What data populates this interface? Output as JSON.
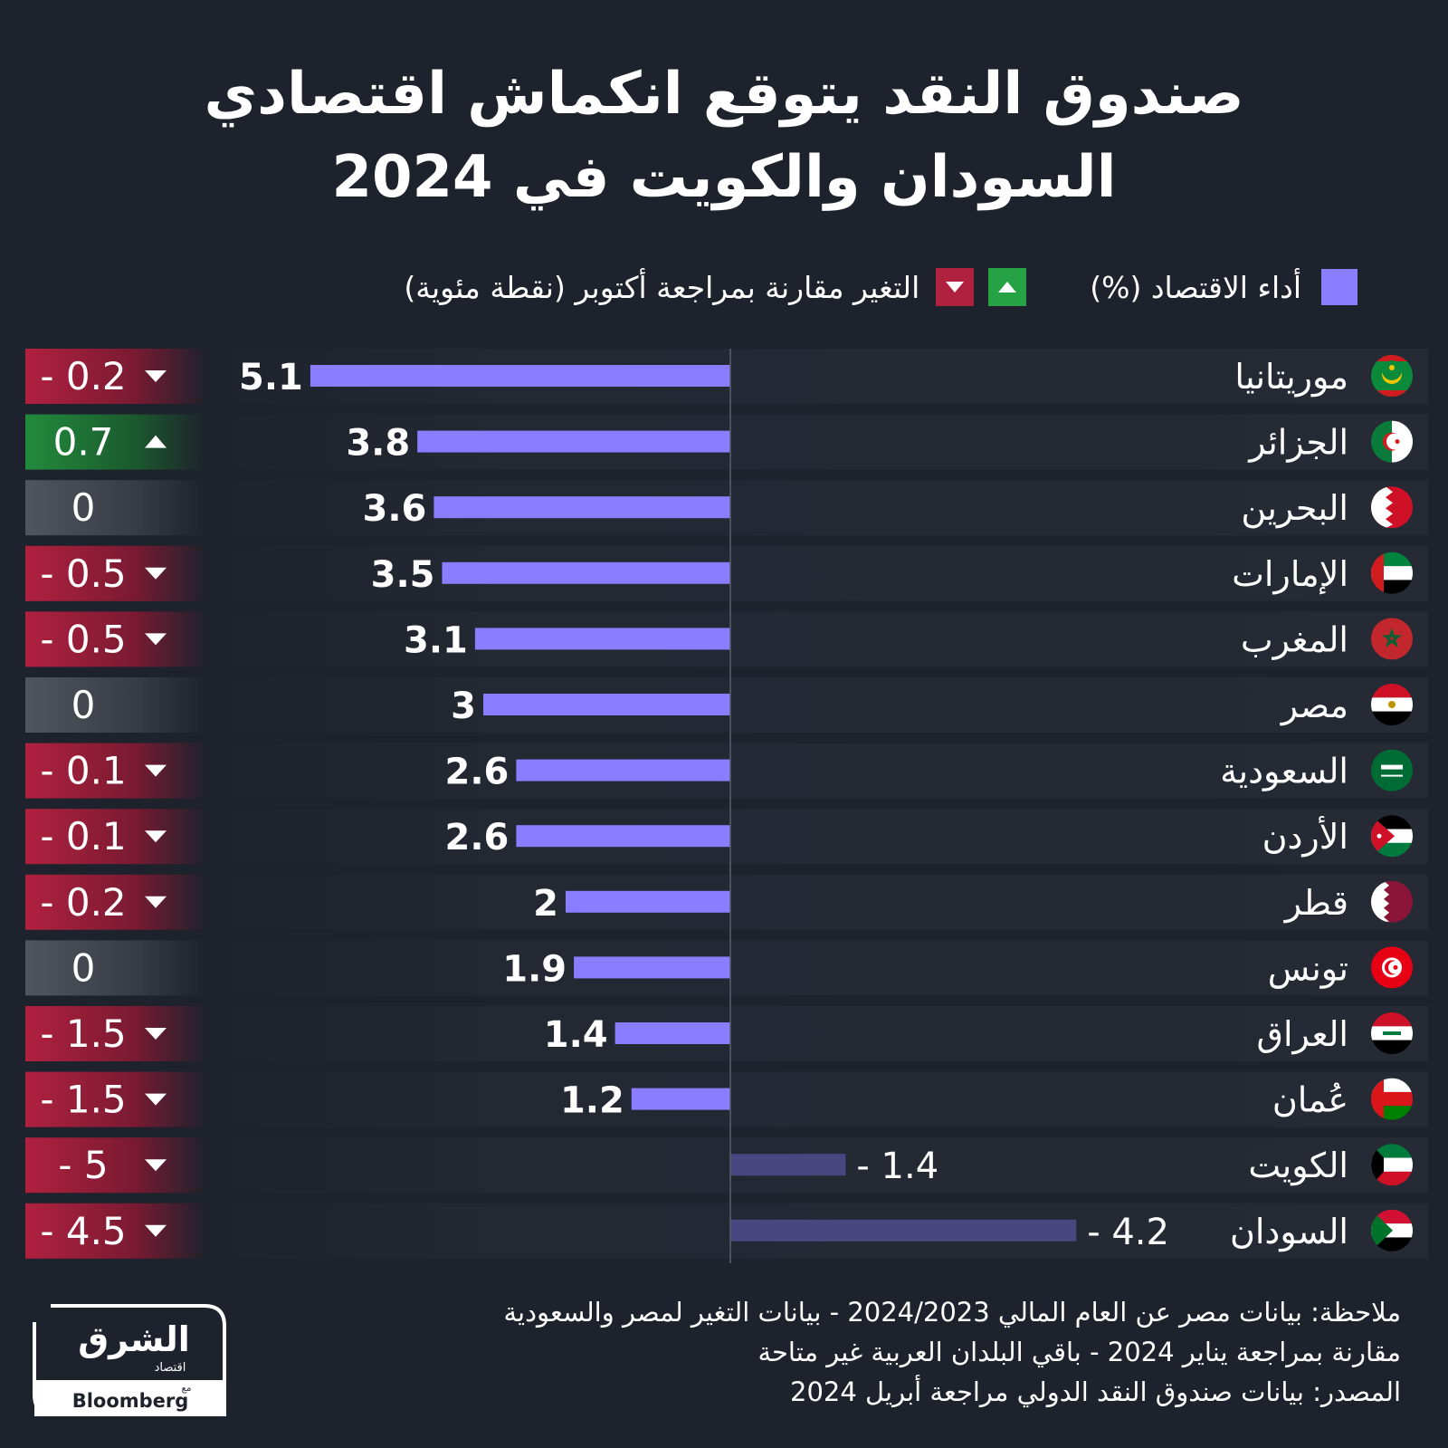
{
  "title": {
    "line1": "صندوق النقد يتوقع انكماش اقتصادي",
    "line2": "السودان والكويت في 2024"
  },
  "legend": {
    "performance": "أداء الاقتصاد (%)",
    "change": "التغير مقارنة بمراجعة أكتوبر (نقطة مئوية)"
  },
  "colors": {
    "background": "#1e222c",
    "bar_positive": "#8a7dff",
    "bar_negative": "#4a4780",
    "change_up": "#25a244",
    "change_down": "#b0213f",
    "change_zero": "#4a4f57"
  },
  "chart_data": {
    "type": "bar",
    "orientation": "horizontal",
    "categories": [
      "موريتانيا",
      "الجزائر",
      "البحرين",
      "الإمارات",
      "المغرب",
      "مصر",
      "السعودية",
      "الأردن",
      "قطر",
      "تونس",
      "العراق",
      "عُمان",
      "الكويت",
      "السودان"
    ],
    "values": [
      5.1,
      3.8,
      3.6,
      3.5,
      3.1,
      3,
      2.6,
      2.6,
      2,
      1.9,
      1.4,
      1.2,
      -1.4,
      -4.2
    ],
    "value_labels": [
      "5.1",
      "3.8",
      "3.6",
      "3.5",
      "3.1",
      "3",
      "2.6",
      "2.6",
      "2",
      "1.9",
      "1.4",
      "1.2",
      "- 1.4",
      "- 4.2"
    ],
    "change": [
      -0.2,
      0.7,
      0,
      -0.5,
      -0.5,
      0,
      -0.1,
      -0.1,
      -0.2,
      0,
      -1.5,
      -1.5,
      -5,
      -4.5
    ],
    "change_labels": [
      "- 0.2",
      "0.7",
      "0",
      "- 0.5",
      "- 0.5",
      "0",
      "- 0.1",
      "- 0.1",
      "- 0.2",
      "0",
      "- 1.5",
      "- 1.5",
      "- 5",
      "- 4.5"
    ],
    "flags": [
      "mauritania-flag-icon",
      "algeria-flag-icon",
      "bahrain-flag-icon",
      "uae-flag-icon",
      "morocco-flag-icon",
      "egypt-flag-icon",
      "saudi-flag-icon",
      "jordan-flag-icon",
      "qatar-flag-icon",
      "tunisia-flag-icon",
      "iraq-flag-icon",
      "oman-flag-icon",
      "kuwait-flag-icon",
      "sudan-flag-icon"
    ],
    "xlim": [
      -5.1,
      5.1
    ]
  },
  "note": {
    "line1": "ملاحظة: بيانات مصر عن العام المالي 2024/2023 - بيانات التغير لمصر والسعودية",
    "line2": "مقارنة بمراجعة يناير 2024 - باقي البلدان العربية غير متاحة",
    "line3": "المصدر: بيانات صندوق النقد الدولي مراجعة أبريل 2024"
  },
  "logo": {
    "arabic": "الشرق",
    "sub": "اقتصاد",
    "with": "مع",
    "bloomberg": "Bloomberg"
  }
}
